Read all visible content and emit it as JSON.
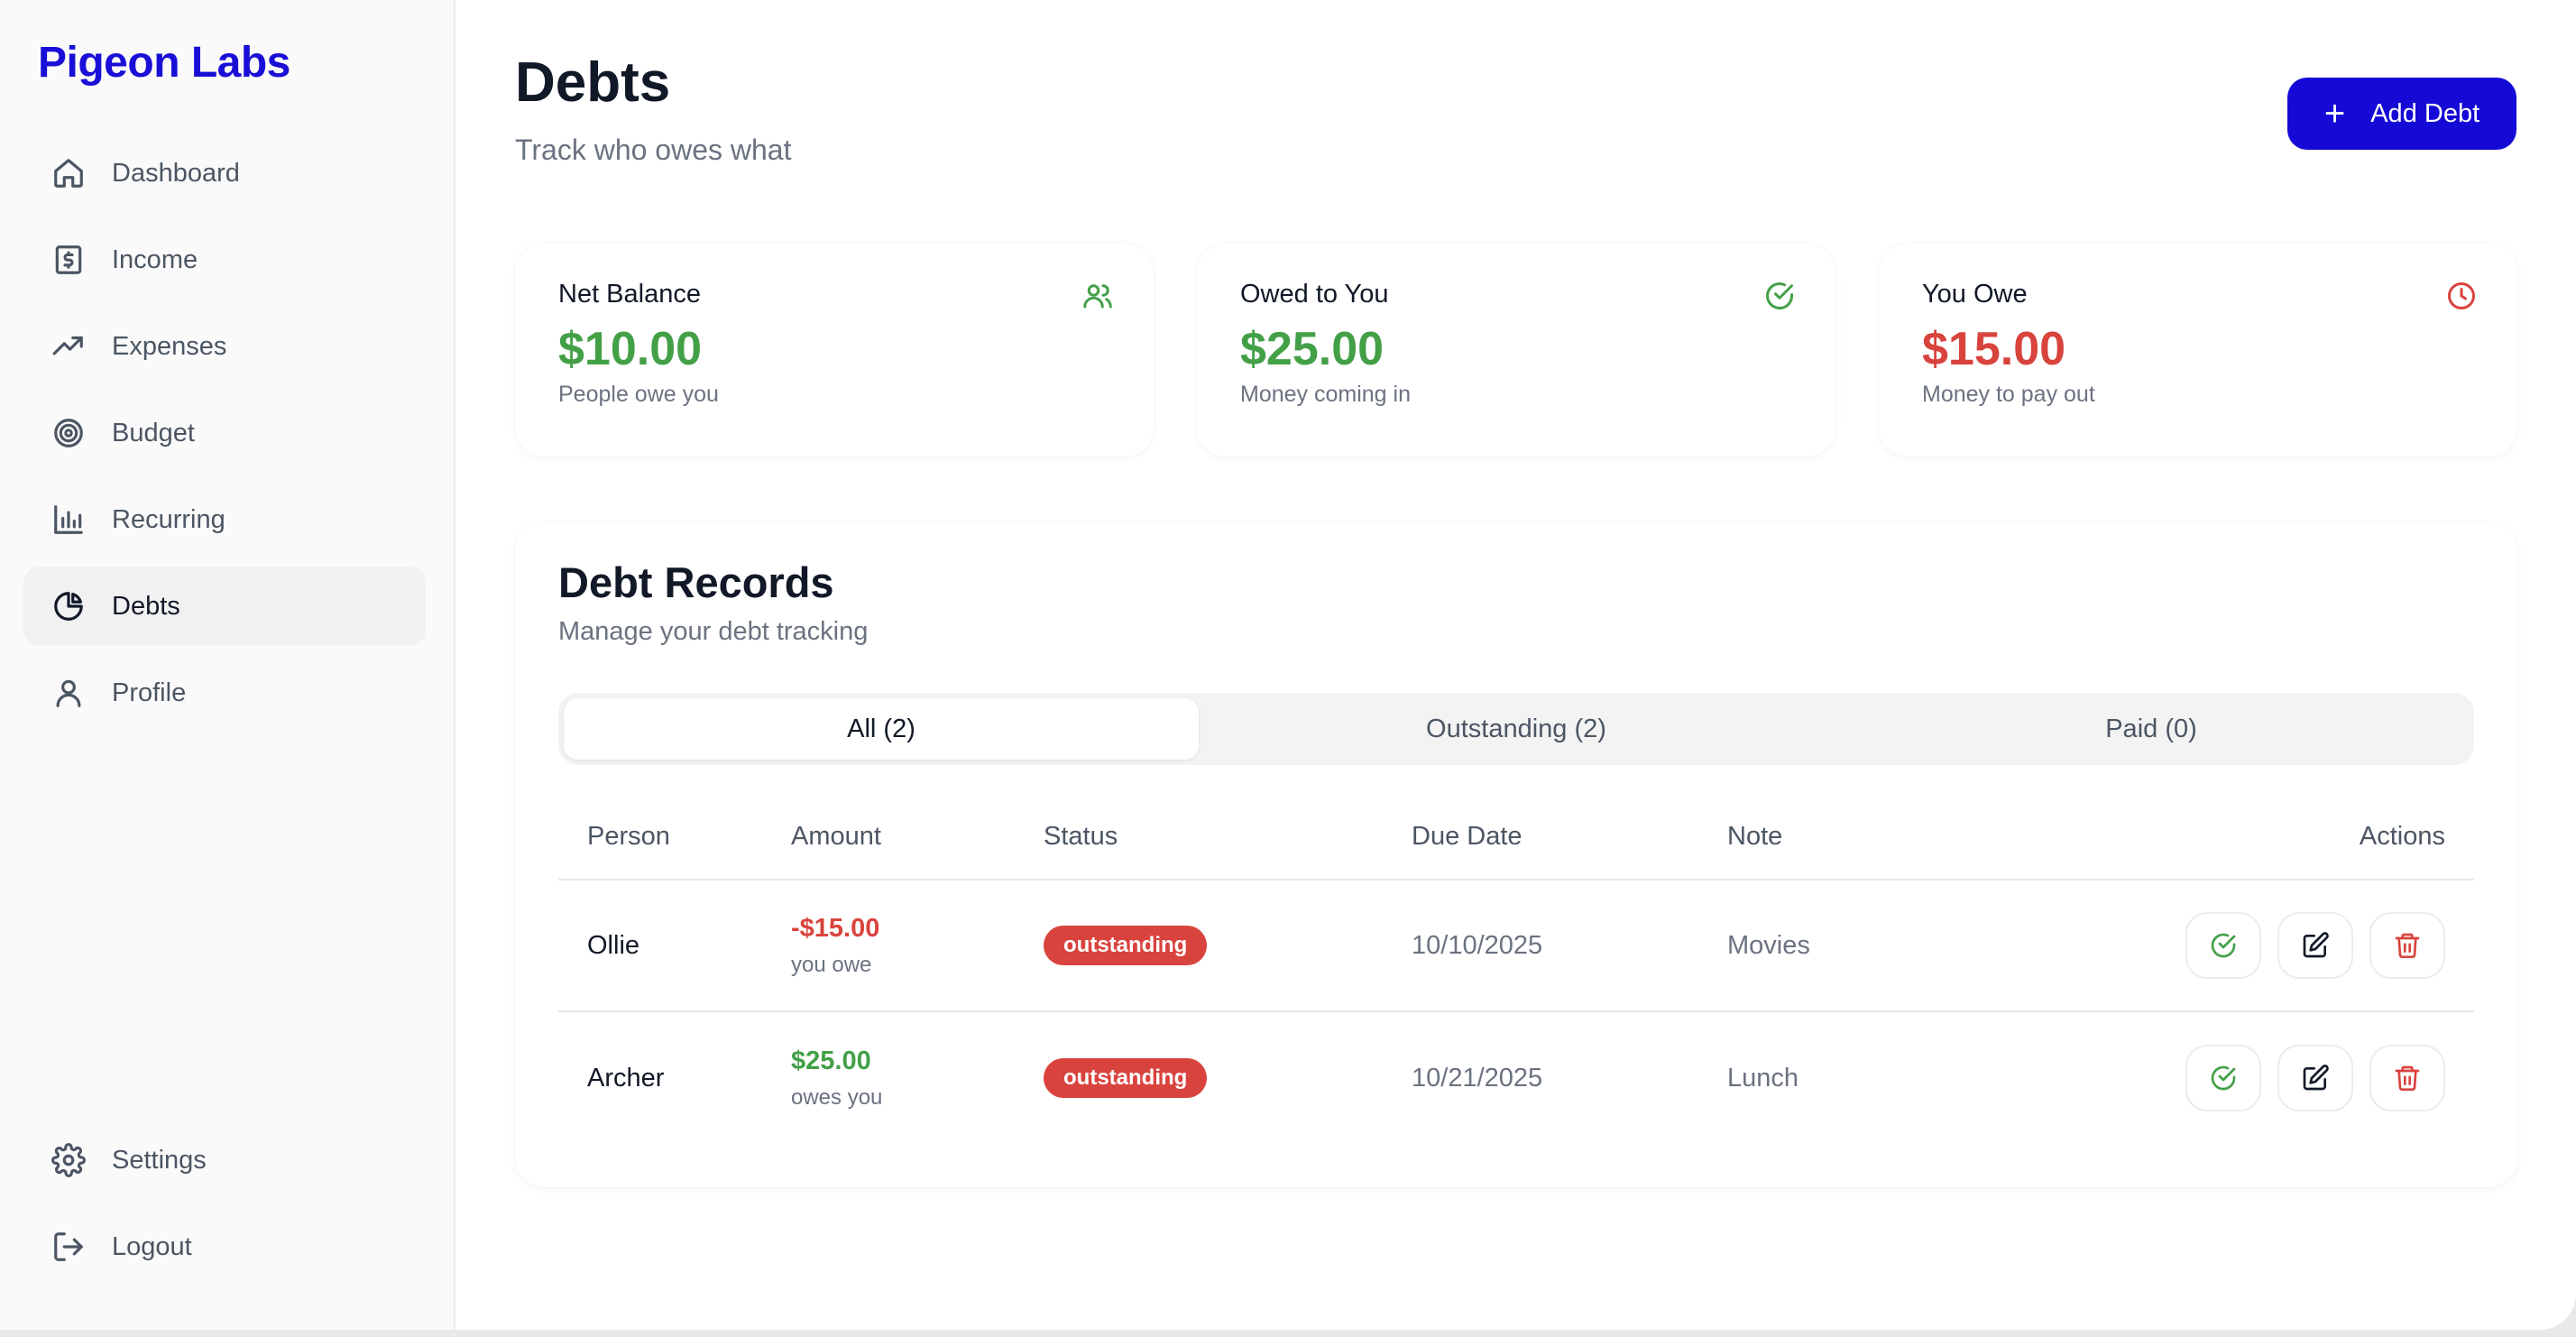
{
  "brand": "Pigeon Labs",
  "sidebar": {
    "items": [
      {
        "label": "Dashboard",
        "icon": "home-icon"
      },
      {
        "label": "Income",
        "icon": "dollar-receipt-icon"
      },
      {
        "label": "Expenses",
        "icon": "trending-up-icon"
      },
      {
        "label": "Budget",
        "icon": "target-icon"
      },
      {
        "label": "Recurring",
        "icon": "bar-chart-icon"
      },
      {
        "label": "Debts",
        "icon": "pie-chart-icon",
        "active": true
      },
      {
        "label": "Profile",
        "icon": "user-icon"
      }
    ],
    "bottom": [
      {
        "label": "Settings",
        "icon": "gear-icon"
      },
      {
        "label": "Logout",
        "icon": "logout-icon"
      }
    ]
  },
  "header": {
    "title": "Debts",
    "subtitle": "Track who owes what",
    "add_button": "Add Debt"
  },
  "summary": [
    {
      "label": "Net Balance",
      "value": "$10.00",
      "desc": "People owe you",
      "color": "#43a047",
      "icon": "users-icon"
    },
    {
      "label": "Owed to You",
      "value": "$25.00",
      "desc": "Money coming in",
      "color": "#43a047",
      "icon": "check-circle-icon"
    },
    {
      "label": "You Owe",
      "value": "$15.00",
      "desc": "Money to pay out",
      "color": "#d9433d",
      "icon": "clock-icon"
    }
  ],
  "records": {
    "title": "Debt Records",
    "subtitle": "Manage your debt tracking",
    "tabs": [
      {
        "label": "All (2)",
        "active": true
      },
      {
        "label": "Outstanding (2)"
      },
      {
        "label": "Paid (0)"
      }
    ],
    "columns": {
      "person": "Person",
      "amount": "Amount",
      "status": "Status",
      "due": "Due Date",
      "note": "Note",
      "actions": "Actions"
    },
    "rows": [
      {
        "person": "Ollie",
        "amount": "-$15.00",
        "amount_sub": "you owe",
        "amount_color": "#d9433d",
        "status": "outstanding",
        "due": "10/10/2025",
        "note": "Movies"
      },
      {
        "person": "Archer",
        "amount": "$25.00",
        "amount_sub": "owes you",
        "amount_color": "#43a047",
        "status": "outstanding",
        "due": "10/21/2025",
        "note": "Lunch"
      }
    ]
  },
  "colors": {
    "brand": "#1a0fd6",
    "button": "#1509d6",
    "positive": "#43a047",
    "negative": "#d9433d"
  }
}
